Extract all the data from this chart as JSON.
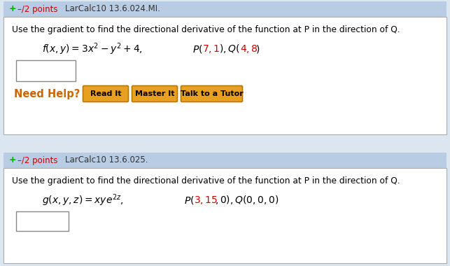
{
  "bg_color": "#dce6f1",
  "header_bg": "#b8cce4",
  "body_bg": "#ffffff",
  "border_color": "#aaaaaa",
  "plus_color": "#00aa00",
  "points_color": "#cc0000",
  "problem1_id": "LarCalc10 13.6.024.MI.",
  "problem2_id": "LarCalc10 13.6.025.",
  "instruction": "Use the gradient to find the directional derivative of the function at P in the direction of Q.",
  "need_help_color": "#cc6600",
  "button_bg": "#e8a020",
  "button_border": "#b87800",
  "button1": "Read It",
  "button2": "Master It",
  "button3": "Talk to a Tutor"
}
